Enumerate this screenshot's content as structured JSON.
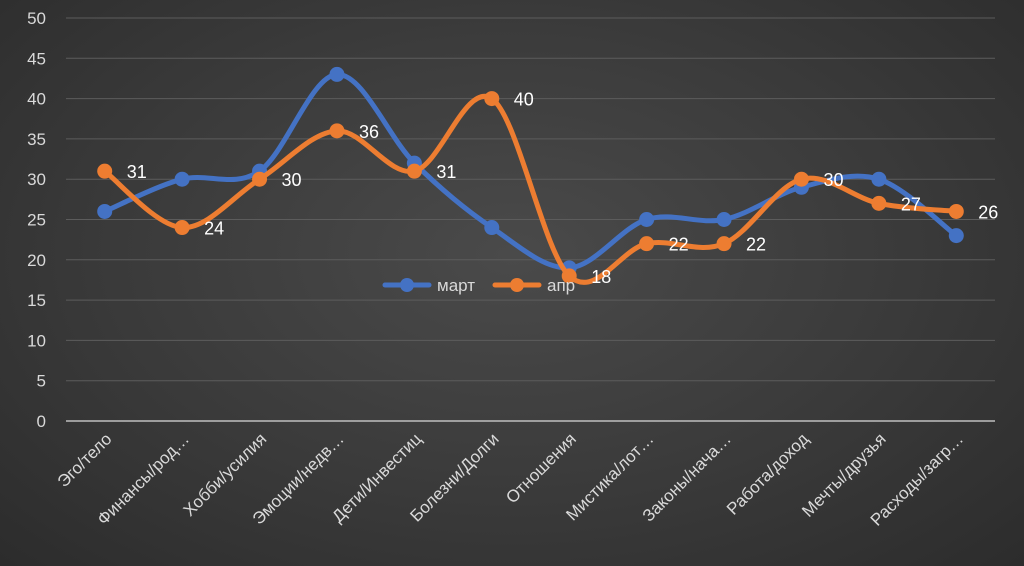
{
  "chart_data": {
    "type": "line",
    "title": "",
    "xlabel": "",
    "ylabel": "",
    "ylim": [
      0,
      50
    ],
    "yticks": [
      0,
      5,
      10,
      15,
      20,
      25,
      30,
      35,
      40,
      45,
      50
    ],
    "grid": true,
    "smooth": true,
    "legend_position": "center",
    "categories": [
      "Эго/тело",
      "Финансы/род…",
      "Хобби/усилия",
      "Эмоции/недв…",
      "Дети/Инвестиц",
      "Болезни/Долги",
      "Отношения",
      "Мистика/лот…",
      "Законы/нача…",
      "Работа/доход",
      "Мечты/друзья",
      "Расходы/загр…"
    ],
    "series": [
      {
        "name": "март",
        "color": "#4472c4",
        "values": [
          26,
          30,
          31,
          43,
          32,
          24,
          19,
          25,
          25,
          29,
          30,
          23
        ],
        "show_labels": false
      },
      {
        "name": "апр",
        "color": "#ed7d31",
        "values": [
          31,
          24,
          30,
          36,
          31,
          40,
          18,
          22,
          22,
          30,
          27,
          26
        ],
        "show_labels": true
      }
    ]
  }
}
